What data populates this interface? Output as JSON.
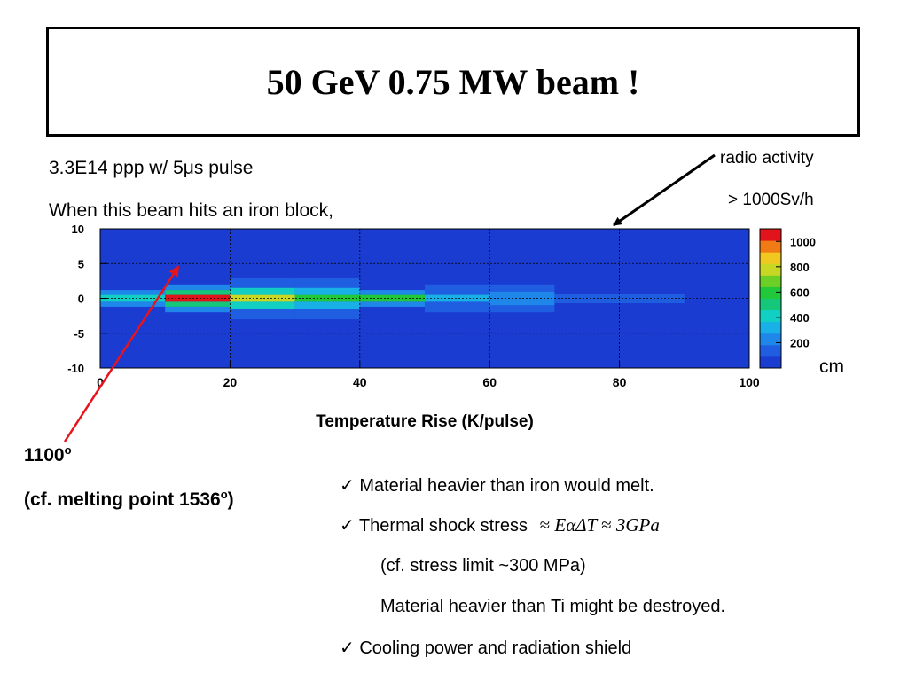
{
  "title": "50 GeV 0.75 MW beam !",
  "intro": {
    "line1_prefix": "3.3E14 ppp w/ 5",
    "line1_mu": "μ",
    "line1_suffix": "s pulse",
    "line2": "When this beam hits an iron block,"
  },
  "annotations": {
    "radio_label": "radio activity",
    "radio_value": "> 1000Sv/h",
    "unit_cm": "cm",
    "temp_value": "1100",
    "temp_sup": "o",
    "melting_prefix": "(cf. melting point 1536",
    "melting_sup": "o",
    "melting_suffix": ")"
  },
  "bullets": {
    "check_mark": "✓",
    "b1": "Material heavier than iron would melt.",
    "b2_text": "Thermal shock stress",
    "b2_formula": {
      "approx1": "≈",
      "rhs1": "EαΔT",
      "approx2": "≈",
      "rhs2": "3GPa"
    },
    "sub1": "(cf.  stress limit ~300 MPa)",
    "sub2": "Material heavier than Ti might be destroyed.",
    "b3": "Cooling power and radiation shield"
  },
  "colors": {
    "background_field": "#1a3cd1",
    "arrow_red": "#e8141c",
    "arrow_black": "#000000"
  },
  "chart_data": {
    "type": "heatmap",
    "xlabel": "Temperature Rise (K/pulse)",
    "ylabel": "",
    "xlim": [
      0,
      100
    ],
    "ylim": [
      -10,
      10
    ],
    "x_ticks": [
      "0",
      "20",
      "40",
      "60",
      "80",
      "100"
    ],
    "y_ticks": [
      "10",
      "5",
      "0",
      "-5",
      "-10"
    ],
    "colorbar_ticks": [
      "1000",
      "800",
      "600",
      "400",
      "200"
    ],
    "colorbar_range": [
      0,
      1100
    ],
    "grid": true,
    "cells": [
      {
        "x0": 0,
        "x1": 10,
        "y0": -0.5,
        "y1": 0.5,
        "value": 420
      },
      {
        "x0": 0,
        "x1": 10,
        "y0": 0.5,
        "y1": 1.2,
        "value": 220
      },
      {
        "x0": 0,
        "x1": 10,
        "y0": -1.2,
        "y1": -0.5,
        "value": 220
      },
      {
        "x0": 10,
        "x1": 20,
        "y0": -0.5,
        "y1": 0.5,
        "value": 1100
      },
      {
        "x0": 10,
        "x1": 20,
        "y0": 0.5,
        "y1": 1.2,
        "value": 540
      },
      {
        "x0": 10,
        "x1": 20,
        "y0": -1.2,
        "y1": -0.5,
        "value": 540
      },
      {
        "x0": 10,
        "x1": 20,
        "y0": 1.2,
        "y1": 2.0,
        "value": 200
      },
      {
        "x0": 10,
        "x1": 20,
        "y0": -2.0,
        "y1": -1.2,
        "value": 200
      },
      {
        "x0": 20,
        "x1": 30,
        "y0": -0.5,
        "y1": 0.5,
        "value": 820
      },
      {
        "x0": 20,
        "x1": 30,
        "y0": 0.5,
        "y1": 1.5,
        "value": 400
      },
      {
        "x0": 20,
        "x1": 30,
        "y0": -1.5,
        "y1": -0.5,
        "value": 400
      },
      {
        "x0": 20,
        "x1": 30,
        "y0": 1.5,
        "y1": 3.0,
        "value": 170
      },
      {
        "x0": 20,
        "x1": 30,
        "y0": -3.0,
        "y1": -1.5,
        "value": 170
      },
      {
        "x0": 30,
        "x1": 40,
        "y0": -0.5,
        "y1": 0.5,
        "value": 640
      },
      {
        "x0": 30,
        "x1": 40,
        "y0": 0.5,
        "y1": 1.5,
        "value": 330
      },
      {
        "x0": 30,
        "x1": 40,
        "y0": -1.5,
        "y1": -0.5,
        "value": 330
      },
      {
        "x0": 30,
        "x1": 40,
        "y0": 1.5,
        "y1": 3.0,
        "value": 160
      },
      {
        "x0": 30,
        "x1": 40,
        "y0": -3.0,
        "y1": -1.5,
        "value": 160
      },
      {
        "x0": 40,
        "x1": 50,
        "y0": -0.5,
        "y1": 0.5,
        "value": 560
      },
      {
        "x0": 40,
        "x1": 50,
        "y0": 0.5,
        "y1": 1.2,
        "value": 270
      },
      {
        "x0": 40,
        "x1": 50,
        "y0": -1.2,
        "y1": -0.5,
        "value": 270
      },
      {
        "x0": 50,
        "x1": 60,
        "y0": -0.5,
        "y1": 0.5,
        "value": 330
      },
      {
        "x0": 50,
        "x1": 60,
        "y0": 0.5,
        "y1": 2.0,
        "value": 180
      },
      {
        "x0": 50,
        "x1": 60,
        "y0": -2.0,
        "y1": -0.5,
        "value": 180
      },
      {
        "x0": 60,
        "x1": 70,
        "y0": -1.0,
        "y1": 1.0,
        "value": 200
      },
      {
        "x0": 60,
        "x1": 70,
        "y0": 1.0,
        "y1": 2.0,
        "value": 150
      },
      {
        "x0": 60,
        "x1": 70,
        "y0": -2.0,
        "y1": -1.0,
        "value": 150
      },
      {
        "x0": 70,
        "x1": 80,
        "y0": -0.7,
        "y1": 0.7,
        "value": 160
      },
      {
        "x0": 80,
        "x1": 90,
        "y0": -0.7,
        "y1": 0.7,
        "value": 140
      }
    ]
  }
}
